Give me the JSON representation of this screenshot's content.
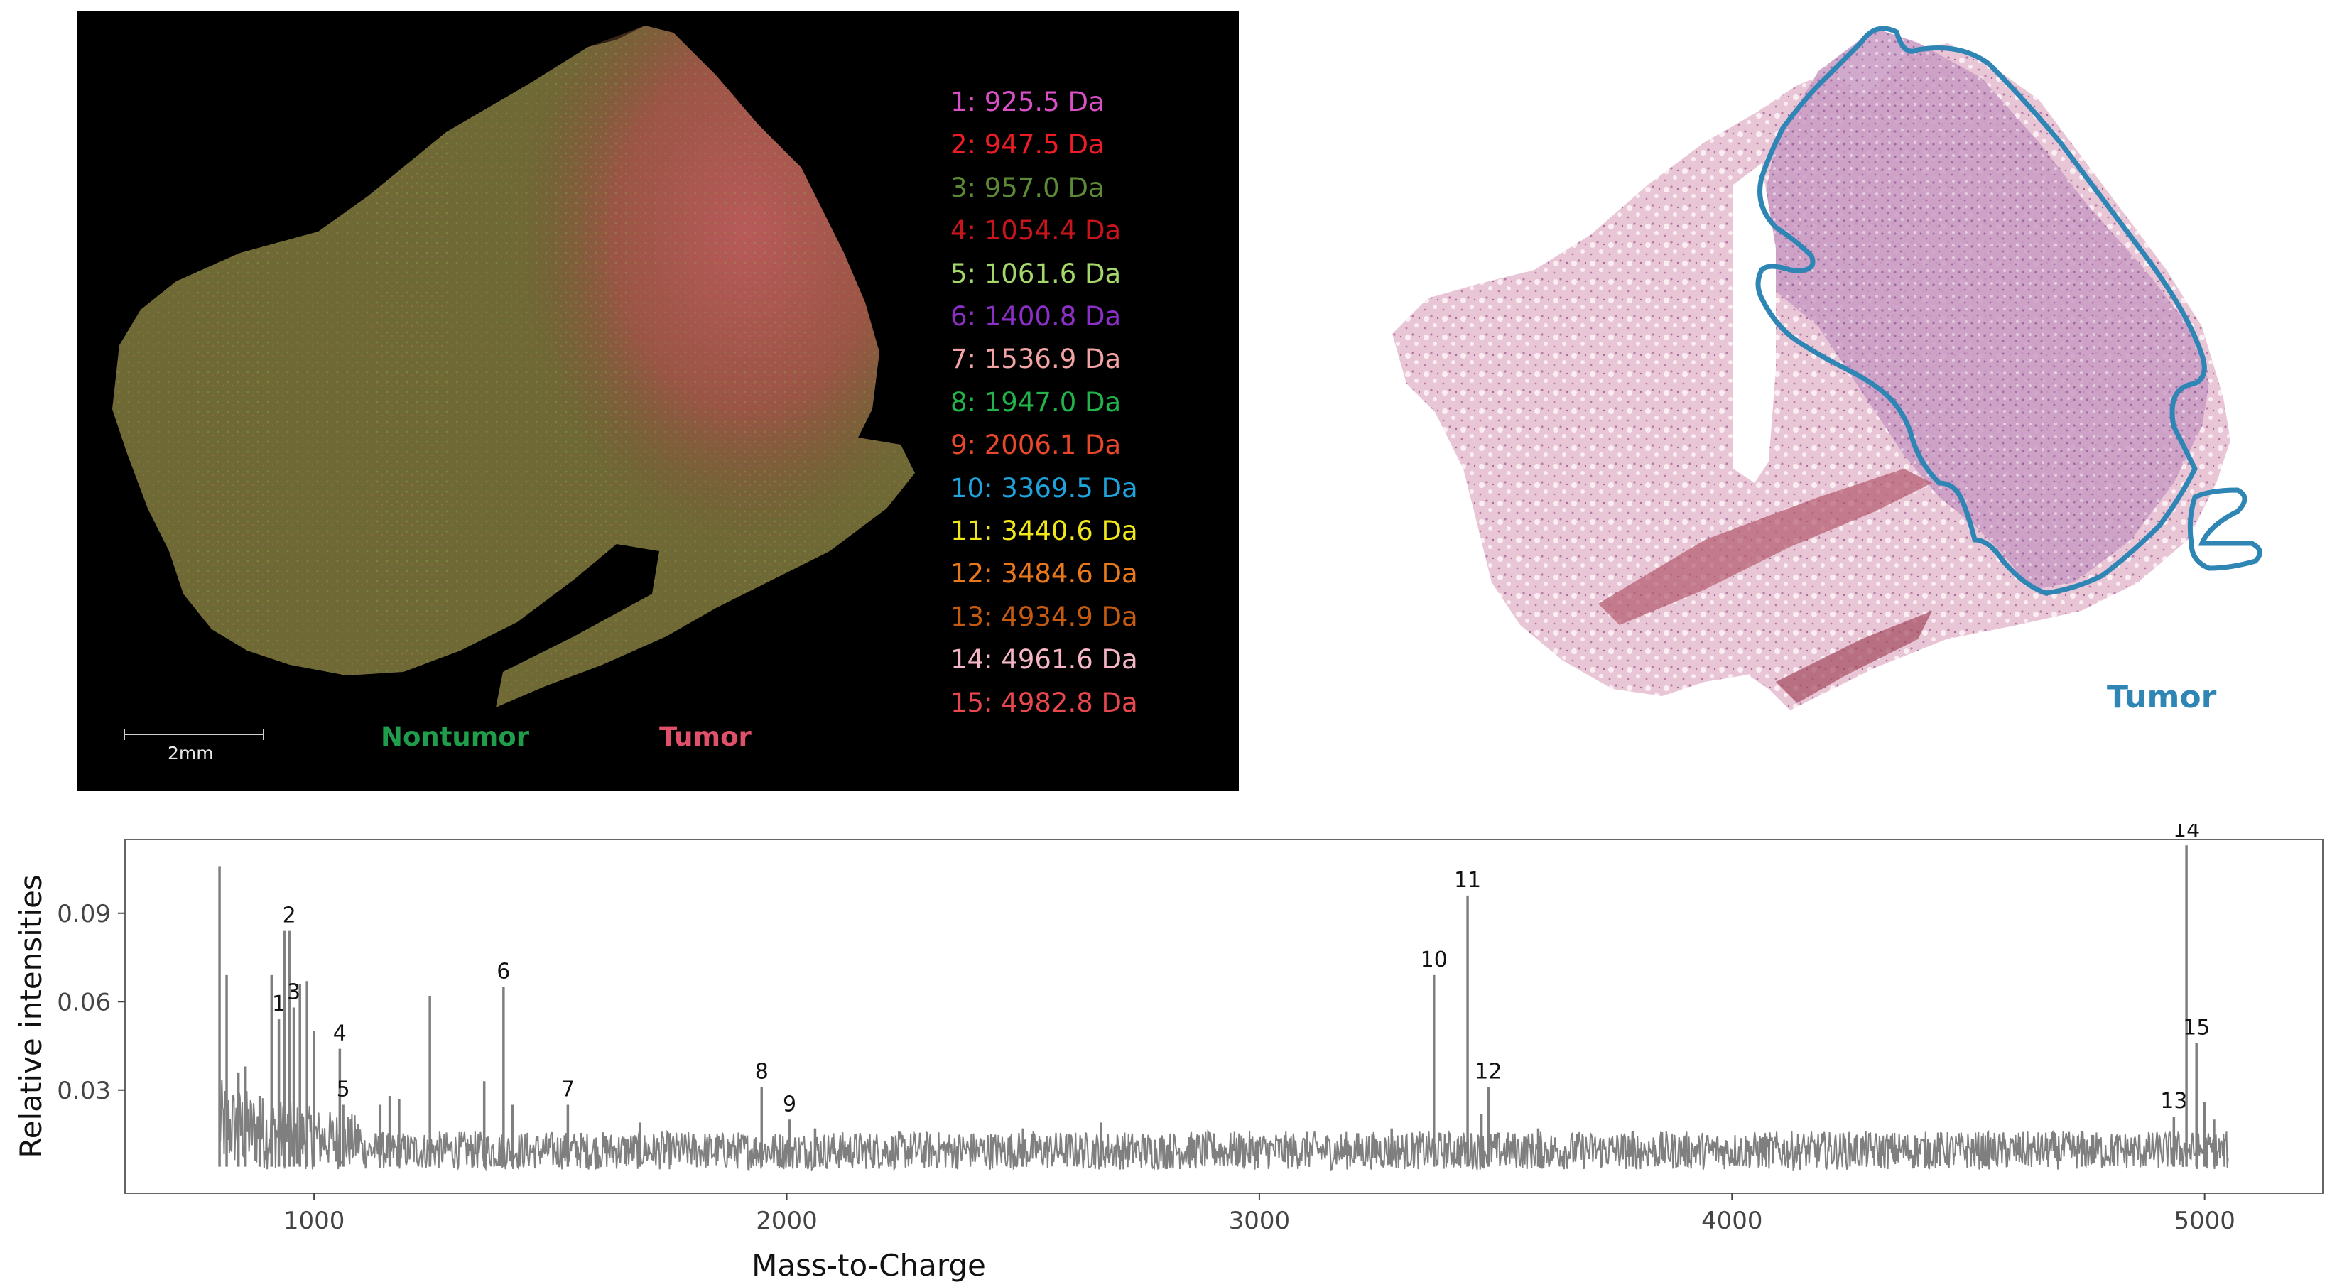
{
  "panel_a": {
    "legend": [
      {
        "label": "1: 925.5 Da",
        "color": "#d94fc6"
      },
      {
        "label": "2: 947.5 Da",
        "color": "#ee1c24"
      },
      {
        "label": "3: 957.0 Da",
        "color": "#5d8a36"
      },
      {
        "label": "4: 1054.4 Da",
        "color": "#c8151b"
      },
      {
        "label": "5: 1061.6 Da",
        "color": "#a5d86a"
      },
      {
        "label": "6: 1400.8 Da",
        "color": "#8c2fc7"
      },
      {
        "label": "7: 1536.9 Da",
        "color": "#f2a3a3"
      },
      {
        "label": "8: 1947.0 Da",
        "color": "#22b34a"
      },
      {
        "label": "9: 2006.1 Da",
        "color": "#e8472a"
      },
      {
        "label": "10: 3369.5 Da",
        "color": "#1fa3dc"
      },
      {
        "label": "11: 3440.6 Da",
        "color": "#f0e61a"
      },
      {
        "label": "12: 3484.6 Da",
        "color": "#e8781c"
      },
      {
        "label": "13: 4934.9 Da",
        "color": "#c55a11"
      },
      {
        "label": "14: 4961.6 Da",
        "color": "#f4b6c4"
      },
      {
        "label": "15: 4982.8 Da",
        "color": "#e8474d"
      }
    ],
    "scale_label": "2mm",
    "nontumor_label": "Nontumor",
    "tumor_label": "Tumor"
  },
  "panel_b": {
    "tumor_label": "Tumor",
    "outline_color": "#2f86b5"
  },
  "chart_data": {
    "type": "line",
    "title": "",
    "xlabel": "Mass-to-Charge",
    "ylabel": "Relative intensities",
    "xlim": [
      600,
      5250
    ],
    "ylim": [
      -0.005,
      0.115
    ],
    "xticks": [
      1000,
      2000,
      3000,
      4000,
      5000
    ],
    "xtick_labels": [
      "1000",
      "2000",
      "3000",
      "4000",
      "5000"
    ],
    "yticks": [
      0.03,
      0.06,
      0.09
    ],
    "ytick_labels": [
      "0.03",
      "0.06",
      "0.09"
    ],
    "baseline": 0.009,
    "line_color": "#7f7f7f",
    "peaks": [
      {
        "x": 800,
        "y": 0.106
      },
      {
        "x": 815,
        "y": 0.069
      },
      {
        "x": 840,
        "y": 0.036
      },
      {
        "x": 855,
        "y": 0.038
      },
      {
        "x": 885,
        "y": 0.028
      },
      {
        "x": 910,
        "y": 0.069
      },
      {
        "x": 925.5,
        "y": 0.054,
        "label": "1"
      },
      {
        "x": 937,
        "y": 0.084
      },
      {
        "x": 947.5,
        "y": 0.084,
        "label": "2"
      },
      {
        "x": 957.0,
        "y": 0.058,
        "label": "3"
      },
      {
        "x": 970,
        "y": 0.066
      },
      {
        "x": 985,
        "y": 0.067
      },
      {
        "x": 1000,
        "y": 0.05
      },
      {
        "x": 1054.4,
        "y": 0.044,
        "label": "4"
      },
      {
        "x": 1061.6,
        "y": 0.025,
        "label": "5"
      },
      {
        "x": 1140,
        "y": 0.025
      },
      {
        "x": 1160,
        "y": 0.028
      },
      {
        "x": 1180,
        "y": 0.027
      },
      {
        "x": 1245,
        "y": 0.062
      },
      {
        "x": 1360,
        "y": 0.033
      },
      {
        "x": 1400.8,
        "y": 0.065,
        "label": "6"
      },
      {
        "x": 1420,
        "y": 0.025
      },
      {
        "x": 1536.9,
        "y": 0.025,
        "label": "7"
      },
      {
        "x": 1690,
        "y": 0.019
      },
      {
        "x": 1947.0,
        "y": 0.031,
        "label": "8"
      },
      {
        "x": 2006.1,
        "y": 0.02,
        "label": "9"
      },
      {
        "x": 2060,
        "y": 0.017
      },
      {
        "x": 2500,
        "y": 0.017
      },
      {
        "x": 2665,
        "y": 0.019
      },
      {
        "x": 3280,
        "y": 0.017
      },
      {
        "x": 3369.5,
        "y": 0.069,
        "label": "10"
      },
      {
        "x": 3440.6,
        "y": 0.096,
        "label": "11"
      },
      {
        "x": 3470,
        "y": 0.022
      },
      {
        "x": 3484.6,
        "y": 0.031,
        "label": "12"
      },
      {
        "x": 3590,
        "y": 0.017
      },
      {
        "x": 3790,
        "y": 0.016
      },
      {
        "x": 4740,
        "y": 0.016
      },
      {
        "x": 4934.9,
        "y": 0.021,
        "label": "13"
      },
      {
        "x": 4961.6,
        "y": 0.113,
        "label": "14"
      },
      {
        "x": 4982.8,
        "y": 0.046,
        "label": "15"
      },
      {
        "x": 5000,
        "y": 0.026
      },
      {
        "x": 5020,
        "y": 0.02
      }
    ]
  }
}
